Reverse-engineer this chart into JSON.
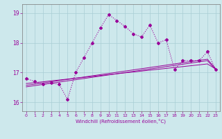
{
  "xlabel": "Windchill (Refroidissement éolien,°C)",
  "xlim": [
    -0.5,
    23.5
  ],
  "ylim": [
    15.7,
    19.3
  ],
  "yticks": [
    16,
    17,
    18,
    19
  ],
  "xticks": [
    0,
    1,
    2,
    3,
    4,
    5,
    6,
    7,
    8,
    9,
    10,
    11,
    12,
    13,
    14,
    15,
    16,
    17,
    18,
    19,
    20,
    21,
    22,
    23
  ],
  "bg_color": "#cde8ec",
  "grid_color": "#a8cdd4",
  "line_color": "#990099",
  "main_y": [
    16.8,
    16.7,
    16.6,
    16.65,
    16.6,
    16.1,
    17.0,
    17.5,
    18.0,
    18.5,
    18.95,
    18.75,
    18.55,
    18.3,
    18.2,
    18.6,
    18.0,
    18.1,
    17.1,
    17.4,
    17.4,
    17.4,
    17.7,
    17.1
  ],
  "reg1_y": [
    16.63,
    16.66,
    16.69,
    16.72,
    16.75,
    16.78,
    16.81,
    16.84,
    16.87,
    16.9,
    16.93,
    16.96,
    16.99,
    17.02,
    17.05,
    17.08,
    17.11,
    17.14,
    17.17,
    17.2,
    17.23,
    17.26,
    17.29,
    17.12
  ],
  "reg2_y": [
    16.52,
    16.56,
    16.6,
    16.64,
    16.68,
    16.72,
    16.76,
    16.8,
    16.84,
    16.88,
    16.92,
    16.96,
    17.0,
    17.04,
    17.08,
    17.12,
    17.16,
    17.2,
    17.24,
    17.28,
    17.32,
    17.36,
    17.4,
    17.1
  ],
  "reg3_y": [
    16.57,
    16.61,
    16.65,
    16.69,
    16.73,
    16.77,
    16.81,
    16.85,
    16.89,
    16.93,
    16.97,
    17.01,
    17.05,
    17.09,
    17.13,
    17.17,
    17.21,
    17.25,
    17.29,
    17.33,
    17.37,
    17.41,
    17.45,
    17.13
  ]
}
